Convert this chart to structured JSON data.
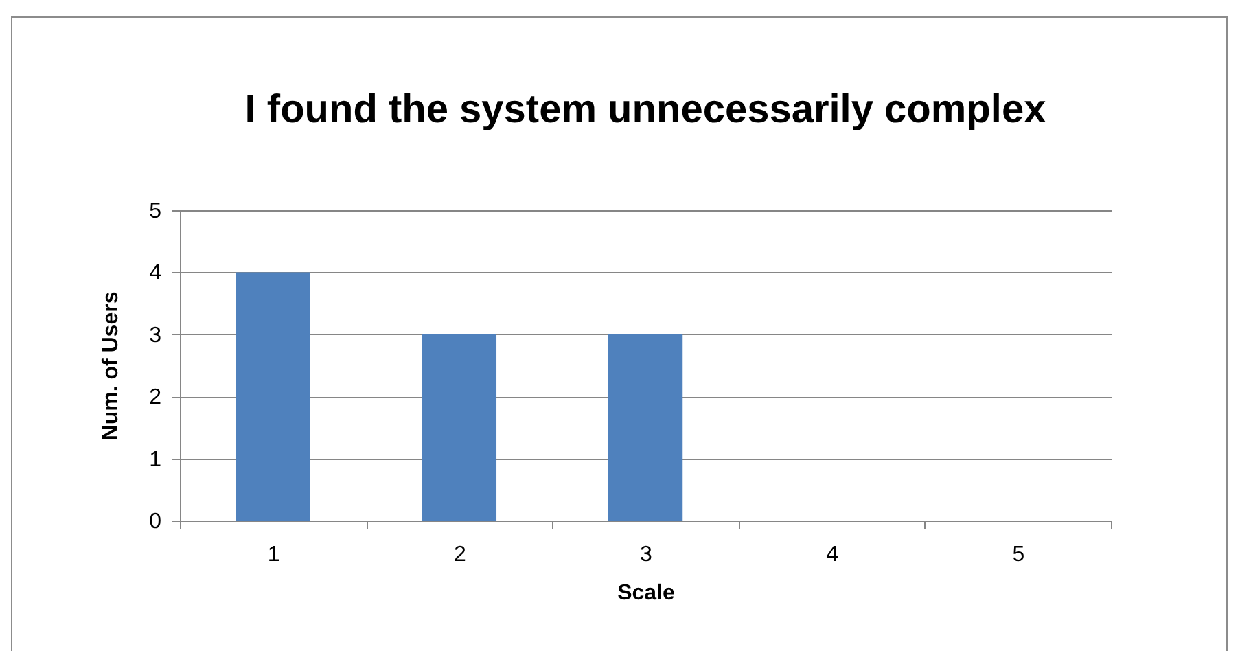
{
  "chart_data": {
    "type": "bar",
    "title": "I found the system unnecessarily complex",
    "xlabel": "Scale",
    "ylabel": "Num. of Users",
    "categories": [
      "1",
      "2",
      "3",
      "4",
      "5"
    ],
    "values": [
      4,
      3,
      3,
      0,
      0
    ],
    "color": "#4f81bd",
    "ylim": [
      0,
      5
    ],
    "yticks": [
      0,
      1,
      2,
      3,
      4,
      5
    ],
    "grid": "y"
  }
}
